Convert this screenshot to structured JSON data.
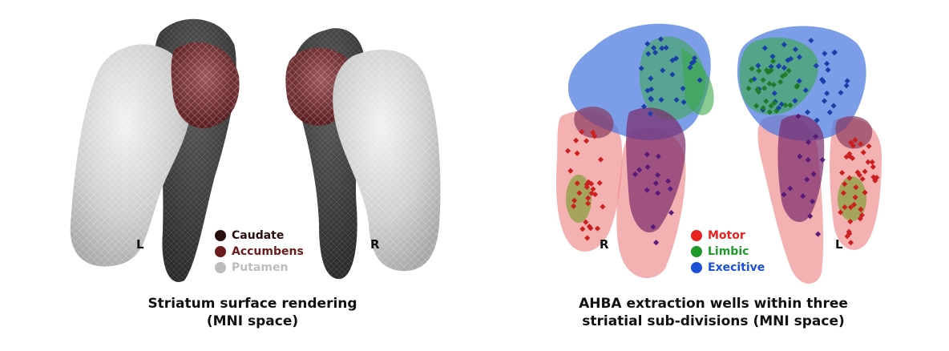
{
  "left_panel": {
    "side_labels": {
      "left": "L",
      "right": "R"
    },
    "legend": [
      {
        "label": "Caudate",
        "color": "#2a0f0f"
      },
      {
        "label": "Accumbens",
        "color": "#6a1c1f"
      },
      {
        "label": "Putamen",
        "color": "#bdbdbd"
      }
    ],
    "caption_line1": "Striatum surface rendering",
    "caption_line2": "(MNI space)"
  },
  "right_panel": {
    "side_labels": {
      "left": "R",
      "right": "L"
    },
    "legend": [
      {
        "label": "Motor",
        "color": "#e8231f"
      },
      {
        "label": "Limbic",
        "color": "#1f9a2a"
      },
      {
        "label": "Execitive",
        "color": "#1a4fd6"
      }
    ],
    "caption_line1": "AHBA extraction wells within three",
    "caption_line2": "striatial sub-divisions (MNI space)"
  }
}
